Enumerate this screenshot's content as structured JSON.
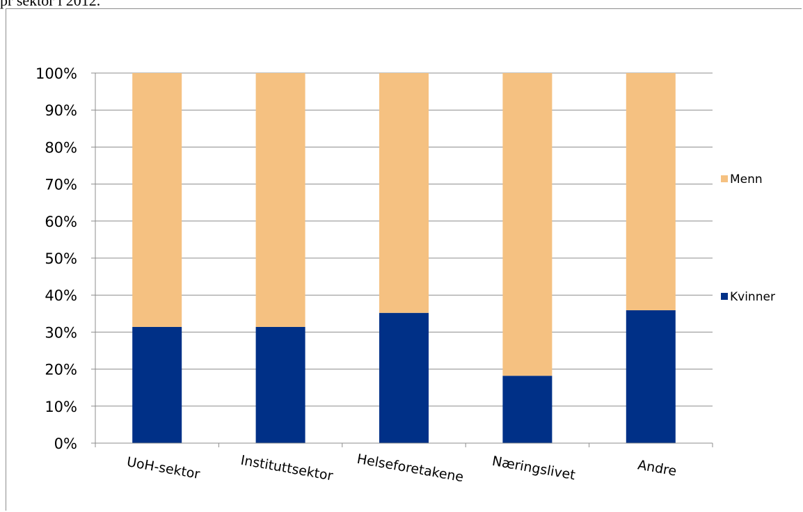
{
  "caption_fragment": "pr sektor i 2012.",
  "chart_data": {
    "type": "bar",
    "stacked": true,
    "percent_stacked": true,
    "categories": [
      "UoH-sektor",
      "Instituttsektor",
      "Helseforetakene",
      "Næringslivet",
      "Andre"
    ],
    "series": [
      {
        "name": "Kvinner",
        "color": "#003087",
        "values": [
          31.4,
          31.4,
          35.2,
          18.2,
          35.9
        ]
      },
      {
        "name": "Menn",
        "color": "#f5c181",
        "values": [
          68.6,
          68.6,
          64.8,
          81.8,
          64.1
        ]
      }
    ],
    "y_ticks": [
      "0%",
      "10%",
      "20%",
      "30%",
      "40%",
      "50%",
      "60%",
      "70%",
      "80%",
      "90%",
      "100%"
    ],
    "ylim": [
      0,
      100
    ],
    "grid": true,
    "legend_position": "right",
    "legend_order": [
      "Menn",
      "Kvinner"
    ],
    "title": "",
    "xlabel": "",
    "ylabel": ""
  }
}
